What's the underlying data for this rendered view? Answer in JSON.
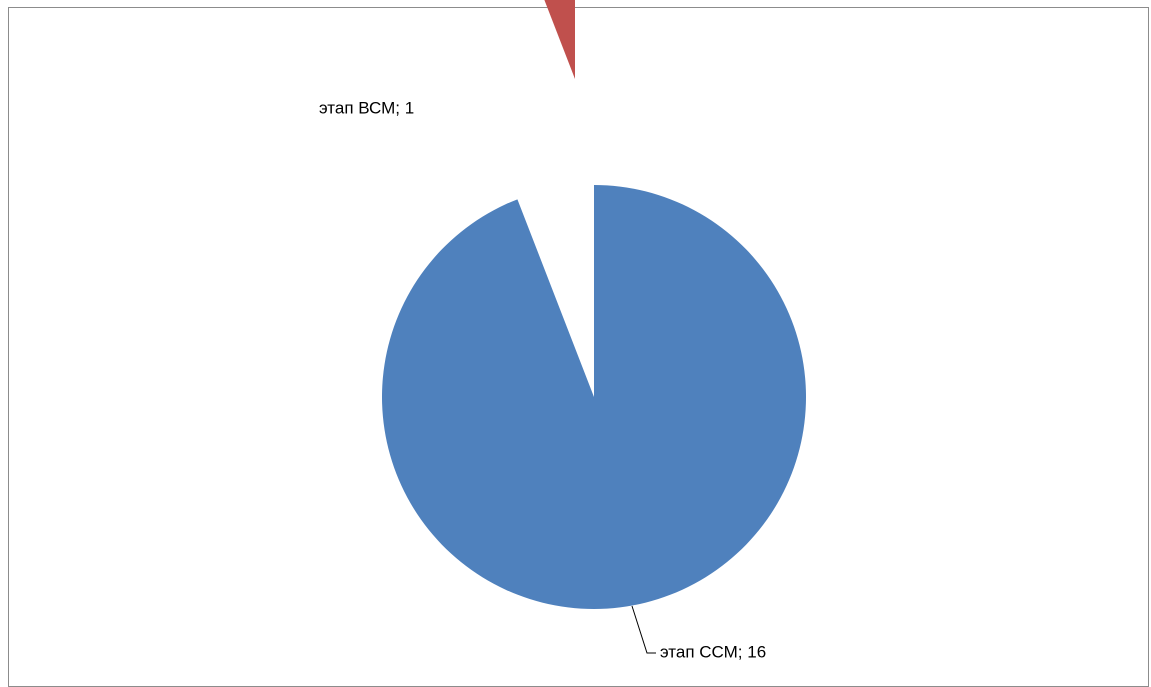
{
  "chart_data": {
    "type": "pie",
    "title": "",
    "slices": [
      {
        "name": "этап ССМ",
        "value": 16,
        "label": "этап ССМ; 16",
        "color": "#4f81bd",
        "exploded": false
      },
      {
        "name": "этап ВСМ",
        "value": 1,
        "label": "этап ВСМ; 1",
        "color": "#c0504d",
        "exploded": true
      }
    ],
    "start_angle_deg": 0,
    "direction": "clockwise",
    "legend": "none",
    "data_labels": "category; value"
  }
}
